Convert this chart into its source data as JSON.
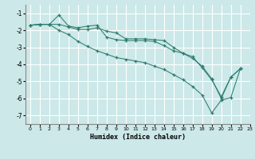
{
  "xlabel": "Humidex (Indice chaleur)",
  "bg_color": "#cce8e8",
  "grid_color": "#ffffff",
  "line_color": "#2d7d6e",
  "xlim": [
    -0.5,
    23
  ],
  "ylim": [
    -7.5,
    -0.5
  ],
  "yticks": [
    -7,
    -6,
    -5,
    -4,
    -3,
    -2,
    -1
  ],
  "xticks": [
    0,
    1,
    2,
    3,
    4,
    5,
    6,
    7,
    8,
    9,
    10,
    11,
    12,
    13,
    14,
    15,
    16,
    17,
    18,
    19,
    20,
    21,
    22,
    23
  ],
  "xtick_labels": [
    "0",
    "1",
    "2",
    "3",
    "4",
    "5",
    "6",
    "7",
    "8",
    "9",
    "10",
    "11",
    "12",
    "13",
    "14",
    "15",
    "16",
    "17",
    "18",
    "19",
    "20",
    "21",
    "22",
    "23"
  ],
  "line1_x": [
    0,
    1,
    2,
    3,
    4,
    5,
    6,
    7,
    8,
    9,
    10,
    11,
    12,
    13,
    14,
    15,
    16,
    17,
    18,
    19,
    20,
    21,
    22
  ],
  "line1_y": [
    -1.7,
    -1.65,
    -1.65,
    -1.1,
    -1.75,
    -1.85,
    -1.75,
    -1.7,
    -2.4,
    -2.55,
    -2.6,
    -2.6,
    -2.6,
    -2.65,
    -2.9,
    -3.2,
    -3.35,
    -3.55,
    -4.2,
    -4.9,
    -5.9,
    -4.75,
    -4.25
  ],
  "line2_x": [
    0,
    1,
    2,
    3,
    4,
    5,
    6,
    7,
    8,
    9,
    10,
    11,
    12,
    13,
    14,
    15,
    16,
    17,
    18,
    19,
    20,
    21,
    22
  ],
  "line2_y": [
    -1.7,
    -1.65,
    -1.65,
    -1.65,
    -1.8,
    -1.95,
    -1.95,
    -1.85,
    -2.05,
    -2.15,
    -2.5,
    -2.5,
    -2.5,
    -2.55,
    -2.6,
    -3.0,
    -3.35,
    -3.65,
    -4.1,
    -4.85,
    -6.0,
    -4.75,
    -4.25
  ],
  "line3_x": [
    0,
    1,
    2,
    3,
    4,
    5,
    6,
    7,
    8,
    9,
    10,
    11,
    12,
    13,
    14,
    15,
    16,
    17,
    18,
    19,
    20,
    21,
    22
  ],
  "line3_y": [
    -1.7,
    -1.65,
    -1.65,
    -2.0,
    -2.25,
    -2.65,
    -2.95,
    -3.2,
    -3.4,
    -3.6,
    -3.7,
    -3.8,
    -3.9,
    -4.1,
    -4.3,
    -4.6,
    -4.9,
    -5.3,
    -5.8,
    -6.85,
    -6.1,
    -5.95,
    -4.25
  ]
}
